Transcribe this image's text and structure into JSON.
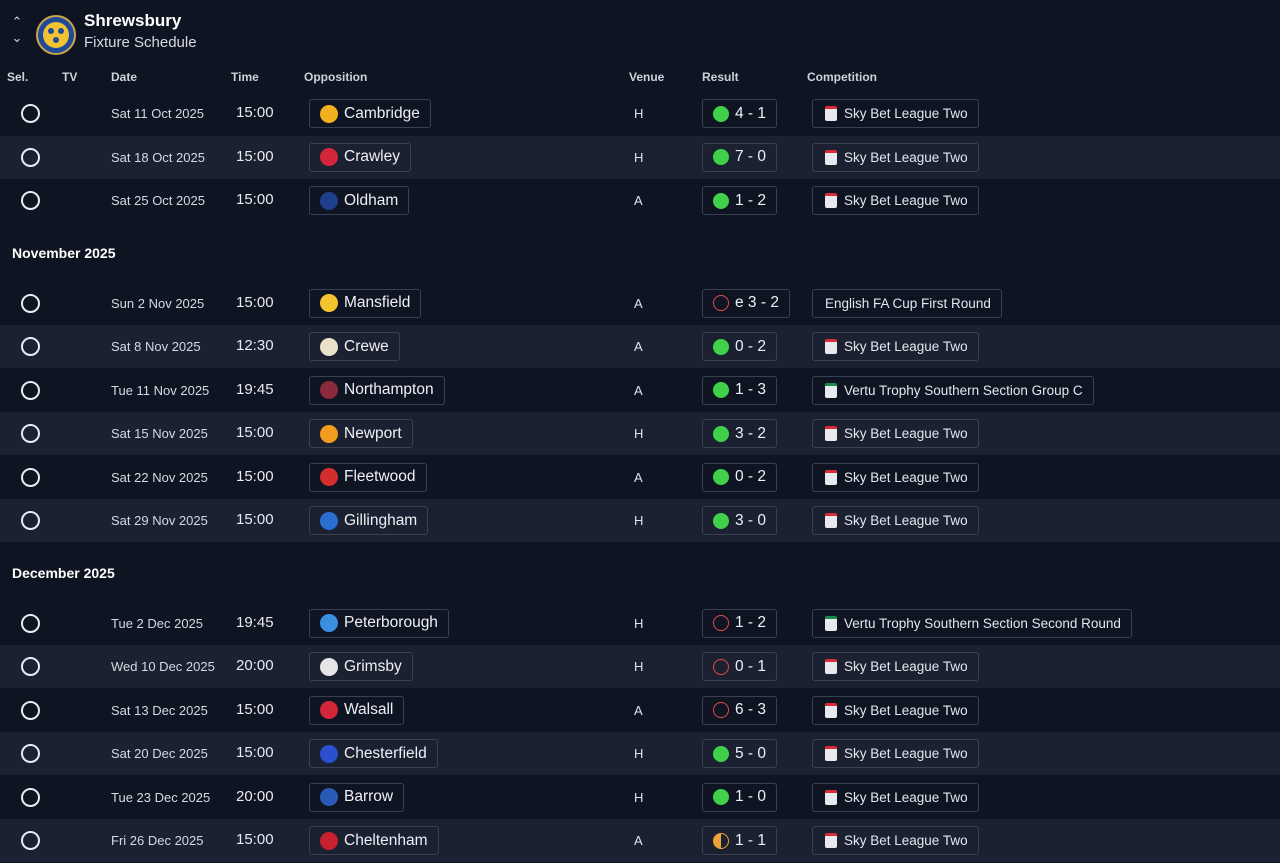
{
  "header": {
    "club_name": "Shrewsbury",
    "subtitle": "Fixture Schedule",
    "crest_icon": "shrewsbury-crest-icon"
  },
  "columns": {
    "sel": "Sel.",
    "tv": "TV",
    "date": "Date",
    "time": "Time",
    "opposition": "Opposition",
    "venue": "Venue",
    "result": "Result",
    "competition": "Competition"
  },
  "colors": {
    "win": "#3fd14a",
    "loss": "#e24a4a",
    "draw": "#f0a23a",
    "background": "#0f1422",
    "row_alt": "#1b2130"
  },
  "months": [
    {
      "label": "",
      "fixtures": [
        {
          "date": "Sat 11 Oct 2025",
          "time": "15:00",
          "opponent": "Cambridge",
          "logo_color": "#f2b01e",
          "venue": "H",
          "result_type": "win",
          "score": "4 - 1",
          "competition": "Sky Bet League Two",
          "comp_type": "league"
        },
        {
          "date": "Sat 18 Oct 2025",
          "time": "15:00",
          "opponent": "Crawley",
          "logo_color": "#d4263a",
          "venue": "H",
          "result_type": "win",
          "score": "7 - 0",
          "competition": "Sky Bet League Two",
          "comp_type": "league"
        },
        {
          "date": "Sat 25 Oct 2025",
          "time": "15:00",
          "opponent": "Oldham",
          "logo_color": "#1d3f8c",
          "venue": "A",
          "result_type": "win",
          "score": "1 - 2",
          "competition": "Sky Bet League Two",
          "comp_type": "league"
        }
      ]
    },
    {
      "label": "November 2025",
      "fixtures": [
        {
          "date": "Sun 2 Nov 2025",
          "time": "15:00",
          "opponent": "Mansfield",
          "logo_color": "#f4c430",
          "venue": "A",
          "result_type": "loss",
          "score": "e 3 - 2",
          "competition": "English FA Cup First Round",
          "comp_type": "none"
        },
        {
          "date": "Sat 8 Nov 2025",
          "time": "12:30",
          "opponent": "Crewe",
          "logo_color": "#e9e2c8",
          "venue": "A",
          "result_type": "win",
          "score": "0 - 2",
          "competition": "Sky Bet League Two",
          "comp_type": "league"
        },
        {
          "date": "Tue 11 Nov 2025",
          "time": "19:45",
          "opponent": "Northampton",
          "logo_color": "#8a2a3b",
          "venue": "A",
          "result_type": "win",
          "score": "1 - 3",
          "competition": "Vertu Trophy Southern Section Group C",
          "comp_type": "trophy"
        },
        {
          "date": "Sat 15 Nov 2025",
          "time": "15:00",
          "opponent": "Newport",
          "logo_color": "#f39c1f",
          "venue": "H",
          "result_type": "win",
          "score": "3 - 2",
          "competition": "Sky Bet League Two",
          "comp_type": "league"
        },
        {
          "date": "Sat 22 Nov 2025",
          "time": "15:00",
          "opponent": "Fleetwood",
          "logo_color": "#d32d2d",
          "venue": "A",
          "result_type": "win",
          "score": "0 - 2",
          "competition": "Sky Bet League Two",
          "comp_type": "league"
        },
        {
          "date": "Sat 29 Nov 2025",
          "time": "15:00",
          "opponent": "Gillingham",
          "logo_color": "#2a6fd0",
          "venue": "H",
          "result_type": "win",
          "score": "3 - 0",
          "competition": "Sky Bet League Two",
          "comp_type": "league"
        }
      ]
    },
    {
      "label": "December 2025",
      "fixtures": [
        {
          "date": "Tue 2 Dec 2025",
          "time": "19:45",
          "opponent": "Peterborough",
          "logo_color": "#3b8fe0",
          "venue": "H",
          "result_type": "loss",
          "score": "1 - 2",
          "competition": "Vertu Trophy Southern Section Second Round",
          "comp_type": "trophy"
        },
        {
          "date": "Wed 10 Dec 2025",
          "time": "20:00",
          "opponent": "Grimsby",
          "logo_color": "#e6e6e6",
          "venue": "H",
          "result_type": "loss",
          "score": "0 - 1",
          "competition": "Sky Bet League Two",
          "comp_type": "league"
        },
        {
          "date": "Sat 13 Dec 2025",
          "time": "15:00",
          "opponent": "Walsall",
          "logo_color": "#d4263a",
          "venue": "A",
          "result_type": "loss",
          "score": "6 - 3",
          "competition": "Sky Bet League Two",
          "comp_type": "league"
        },
        {
          "date": "Sat 20 Dec 2025",
          "time": "15:00",
          "opponent": "Chesterfield",
          "logo_color": "#2a4fd0",
          "venue": "H",
          "result_type": "win",
          "score": "5 - 0",
          "competition": "Sky Bet League Two",
          "comp_type": "league"
        },
        {
          "date": "Tue 23 Dec 2025",
          "time": "20:00",
          "opponent": "Barrow",
          "logo_color": "#2a5ab8",
          "venue": "H",
          "result_type": "win",
          "score": "1 - 0",
          "competition": "Sky Bet League Two",
          "comp_type": "league"
        },
        {
          "date": "Fri 26 Dec 2025",
          "time": "15:00",
          "opponent": "Cheltenham",
          "logo_color": "#c8202e",
          "venue": "A",
          "result_type": "draw",
          "score": "1 - 1",
          "competition": "Sky Bet League Two",
          "comp_type": "league"
        }
      ]
    }
  ]
}
